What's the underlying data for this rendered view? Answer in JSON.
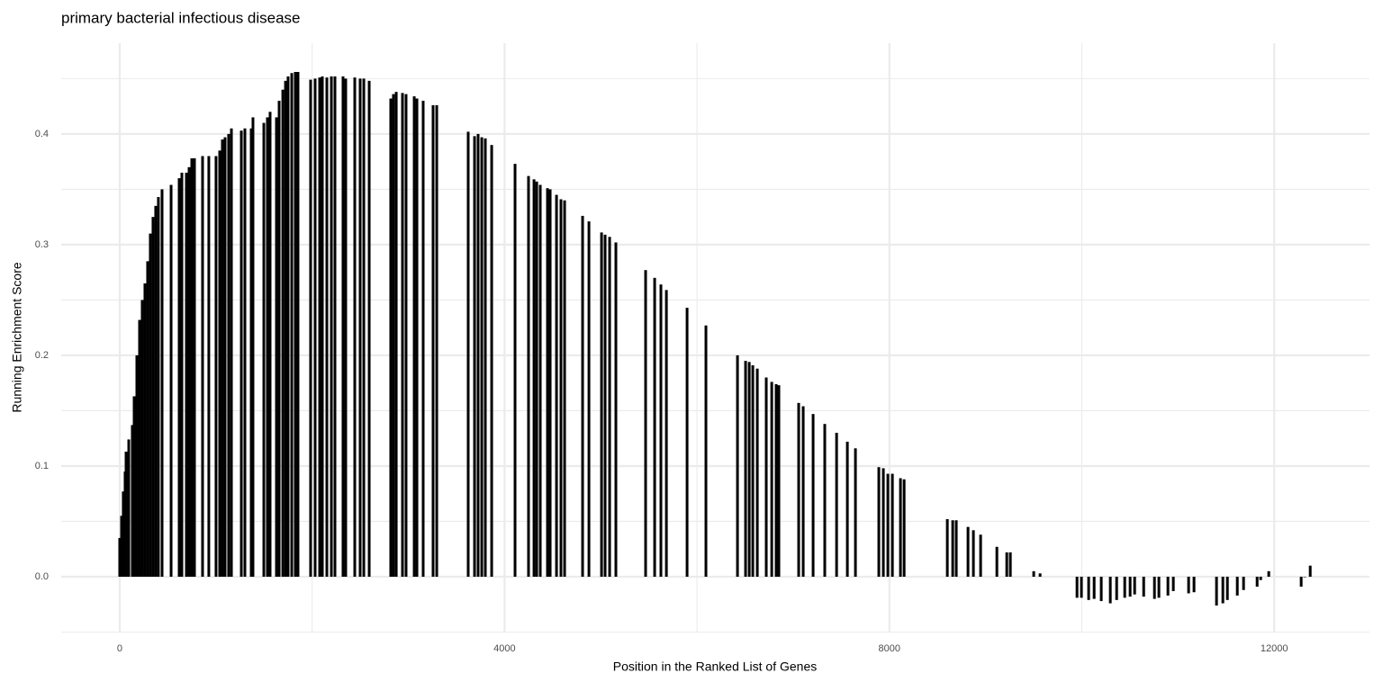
{
  "chart_data": {
    "type": "bar",
    "title": "primary bacterial infectious disease",
    "xlabel": "Position in the Ranked List of Genes",
    "ylabel": "Running Enrichment Score",
    "color": "#000000",
    "grid": true,
    "xlim": [
      -608,
      12990
    ],
    "ylim": [
      -0.0504,
      0.482
    ],
    "xticks": [
      0,
      4000,
      8000,
      12000
    ],
    "yticks": [
      {
        "value": 0,
        "label": "0.0"
      },
      0.1,
      0.2,
      0.3,
      0.4
    ],
    "x": [
      0,
      19,
      37,
      56,
      66,
      94,
      131,
      150,
      178,
      206,
      234,
      262,
      290,
      318,
      346,
      374,
      402,
      440,
      534,
      618,
      646,
      693,
      721,
      749,
      777,
      861,
      926,
      1001,
      1039,
      1067,
      1095,
      1132,
      1161,
      1264,
      1301,
      1367,
      1385,
      1498,
      1535,
      1563,
      1629,
      1657,
      1695,
      1723,
      1750,
      1788,
      1825,
      1853,
      1984,
      2031,
      2078,
      2106,
      2153,
      2200,
      2237,
      2321,
      2349,
      2443,
      2499,
      2537,
      2593,
      2817,
      2845,
      2874,
      2939,
      2976,
      3061,
      3089,
      3154,
      3257,
      3295,
      3622,
      3688,
      3725,
      3763,
      3800,
      3866,
      4109,
      4249,
      4306,
      4334,
      4371,
      4446,
      4474,
      4540,
      4586,
      4624,
      4811,
      4877,
      5008,
      5045,
      5092,
      5157,
      5466,
      5560,
      5625,
      5682,
      5897,
      6093,
      6421,
      6505,
      6543,
      6580,
      6627,
      6720,
      6777,
      6823,
      6851,
      7057,
      7104,
      7207,
      7328,
      7451,
      7563,
      7647,
      7890,
      7937,
      7984,
      8031,
      8115,
      8153,
      8602,
      8658,
      8695,
      8817,
      8873,
      8948,
      9117,
      9220,
      9257,
      9500,
      9566,
      9950,
      9996,
      10071,
      10128,
      10202,
      10296,
      10362,
      10446,
      10502,
      10549,
      10643,
      10755,
      10801,
      10895,
      10951,
      11110,
      11166,
      11400,
      11466,
      11513,
      11616,
      11681,
      11822,
      11859,
      11943,
      12280,
      12317,
      12374
    ],
    "values": [
      0.035,
      0.055,
      0.077,
      0.095,
      0.113,
      0.124,
      0.137,
      0.163,
      0.2,
      0.232,
      0.25,
      0.265,
      0.285,
      0.31,
      0.325,
      0.335,
      0.343,
      0.35,
      0.354,
      0.36,
      0.365,
      0.365,
      0.37,
      0.378,
      0.378,
      0.38,
      0.38,
      0.38,
      0.385,
      0.395,
      0.397,
      0.4,
      0.405,
      0.403,
      0.405,
      0.405,
      0.415,
      0.41,
      0.415,
      0.42,
      0.415,
      0.43,
      0.44,
      0.448,
      0.452,
      0.455,
      0.456,
      0.456,
      0.449,
      0.45,
      0.451,
      0.452,
      0.451,
      0.452,
      0.452,
      0.452,
      0.45,
      0.451,
      0.45,
      0.45,
      0.448,
      0.432,
      0.436,
      0.438,
      0.437,
      0.436,
      0.434,
      0.432,
      0.43,
      0.426,
      0.426,
      0.402,
      0.398,
      0.4,
      0.397,
      0.396,
      0.39,
      0.373,
      0.362,
      0.359,
      0.357,
      0.354,
      0.351,
      0.35,
      0.345,
      0.341,
      0.34,
      0.326,
      0.321,
      0.311,
      0.309,
      0.307,
      0.302,
      0.277,
      0.27,
      0.264,
      0.259,
      0.243,
      0.227,
      0.2,
      0.195,
      0.194,
      0.191,
      0.188,
      0.18,
      0.176,
      0.174,
      0.173,
      0.157,
      0.154,
      0.147,
      0.138,
      0.13,
      0.122,
      0.116,
      0.099,
      0.098,
      0.093,
      0.093,
      0.089,
      0.088,
      0.052,
      0.051,
      0.051,
      0.045,
      0.042,
      0.038,
      0.027,
      0.022,
      0.022,
      0.005,
      0.003,
      -0.019,
      -0.019,
      -0.021,
      -0.02,
      -0.022,
      -0.024,
      -0.021,
      -0.019,
      -0.018,
      -0.016,
      -0.018,
      -0.02,
      -0.019,
      -0.017,
      -0.013,
      -0.015,
      -0.014,
      -0.026,
      -0.024,
      -0.021,
      -0.017,
      -0.012,
      -0.009,
      -0.003,
      0.005,
      -0.009,
      0.0,
      0.01
    ]
  }
}
